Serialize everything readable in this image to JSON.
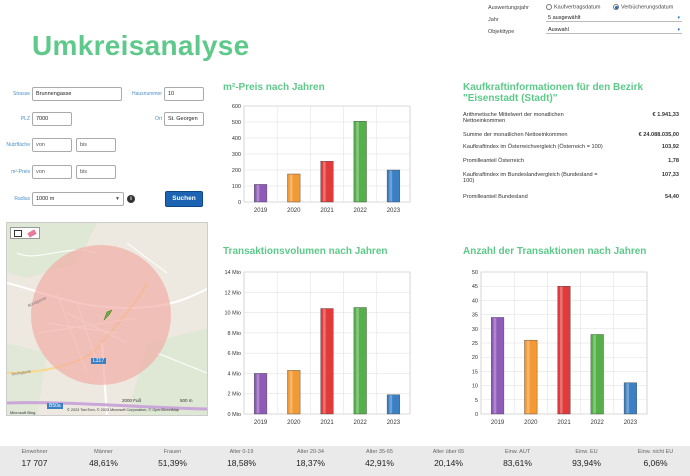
{
  "page_title": "Umkreisanalyse",
  "top_controls": {
    "year_basis_label": "Auswertungsjahr",
    "radio_options": [
      {
        "label": "Kaufvertragsdatum",
        "selected": false
      },
      {
        "label": "Verbücherungsdatum",
        "selected": true
      }
    ],
    "year_label": "Jahr",
    "year_value": "5 ausgewählt",
    "object_type_label": "Objekttype",
    "object_type_value": "Auswahl"
  },
  "form": {
    "street_label": "Strasse",
    "street_value": "Brunnengasse",
    "house_number_label": "Hausnummer",
    "house_number_value": "10",
    "zip_label": "PLZ",
    "zip_value": "7000",
    "city_label": "Ort",
    "city_value": "St. Georgen",
    "area_label": "Nutzfläche",
    "area_from_placeholder": "von",
    "area_to_placeholder": "bis",
    "sqm_price_label": "m²-Preis",
    "price_from_placeholder": "von",
    "price_to_placeholder": "bis",
    "radius_label": "Radius",
    "radius_value": "1000 m",
    "info_glyph": "i",
    "search_button": "Suchen"
  },
  "map": {
    "road_label_1": "L317",
    "road_label_2": "B50a",
    "scale_label_1": "2000 Fuß",
    "scale_label_2": "500 m",
    "copyright": "© 2023 TomTom, © 2023 Microsoft Corporation, © OpenStreetMap",
    "provider": "Microsoft Bing",
    "street_name": "Bündgasse",
    "street_name_2": "Teichgasse",
    "tool_icons": [
      "polygon-select-icon",
      "eraser-icon"
    ],
    "colors": {
      "radius_fill": "#f1a9a3",
      "marker": "#6cae3e"
    }
  },
  "charts": {
    "price_chart_title": "m²-Preis nach Jahren",
    "volume_chart_title": "Transaktionsvolumen nach Jahren",
    "count_chart_title": "Anzahl der Transaktionen nach Jahren"
  },
  "chart_data": [
    {
      "type": "bar",
      "title": "m²-Preis nach Jahren",
      "categories": [
        "2019",
        "2020",
        "2021",
        "2022",
        "2023"
      ],
      "values": [
        110,
        175,
        255,
        505,
        200
      ],
      "ylim": [
        0,
        600
      ],
      "yticks": [
        "0",
        "100",
        "200",
        "300",
        "400",
        "500",
        "600"
      ],
      "grid": true
    },
    {
      "type": "bar",
      "title": "Transaktionsvolumen nach Jahren",
      "categories": [
        "2019",
        "2020",
        "2021",
        "2022",
        "2023"
      ],
      "values": [
        4.0,
        4.3,
        10.4,
        10.5,
        1.9
      ],
      "ylim": [
        0,
        14
      ],
      "yticks": [
        "0 Mio",
        "2 Mio",
        "4 Mio",
        "6 Mio",
        "8 Mio",
        "10 Mio",
        "12 Mio",
        "14 Mio"
      ],
      "grid": true
    },
    {
      "type": "bar",
      "title": "Anzahl der Transaktionen nach Jahren",
      "categories": [
        "2019",
        "2020",
        "2021",
        "2022",
        "2023"
      ],
      "values": [
        34,
        26,
        45,
        28,
        11
      ],
      "ylim": [
        0,
        50
      ],
      "yticks": [
        "0",
        "5",
        "10",
        "15",
        "20",
        "25",
        "30",
        "35",
        "40",
        "45",
        "50"
      ],
      "grid": true
    }
  ],
  "bar_colors": [
    "#8e5bb8",
    "#f39a34",
    "#e03a3a",
    "#55b04a",
    "#3b7fc4"
  ],
  "purchasing_power": {
    "title_line1": "Kaufkraftinformationen für den Bezirk",
    "title_line2": "\"Eisenstadt (Stadt)\"",
    "rows": [
      {
        "label": "Arithmetische Mittelwert der monatlichen Nettoeinkommen",
        "value": "€ 1.941,33"
      },
      {
        "label": "Summe der monatlichen Nettoeinkommen",
        "value": "€ 24.088.035,00"
      },
      {
        "label": "Kaufkraftindex im Österreichvergleich (Österreich = 100)",
        "value": "103,92"
      },
      {
        "label": "Promilleanteil Österreich",
        "value": "1,78"
      },
      {
        "label": "Kaufkraftindex im Bundeslandvergleich (Bundesland = 100)",
        "value": "107,33"
      },
      {
        "label": "Promilleanteil Bundesland",
        "value": "54,40"
      }
    ]
  },
  "stats": [
    {
      "label": "Einwohner",
      "value": "17 707"
    },
    {
      "label": "Männer",
      "value": "48,61%"
    },
    {
      "label": "Frauen",
      "value": "51,39%"
    },
    {
      "label": "Alter 0-19",
      "value": "18,58%"
    },
    {
      "label": "Alter 20-34",
      "value": "18,37%"
    },
    {
      "label": "Alter 35-65",
      "value": "42,91%"
    },
    {
      "label": "Alter über 65",
      "value": "20,14%"
    },
    {
      "label": "Einw. AUT",
      "value": "83,61%"
    },
    {
      "label": "Einw. EU",
      "value": "93,94%"
    },
    {
      "label": "Einw. nicht EU",
      "value": "6,06%"
    }
  ]
}
